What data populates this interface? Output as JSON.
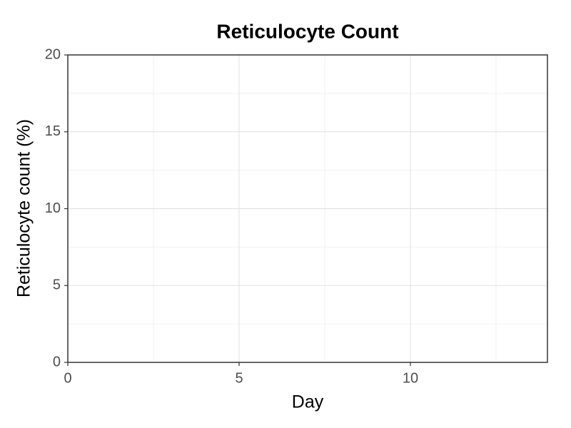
{
  "chart_data": {
    "type": "line",
    "title": "Reticulocyte Count",
    "x_label": "Day",
    "y_label": "Reticulocyte count (%)",
    "series": [],
    "xlim": [
      0,
      14
    ],
    "xticks": [
      0,
      5,
      10
    ],
    "ylim": [
      0,
      20
    ],
    "yticks": [
      0,
      5,
      10,
      15,
      20
    ],
    "grid": true
  }
}
